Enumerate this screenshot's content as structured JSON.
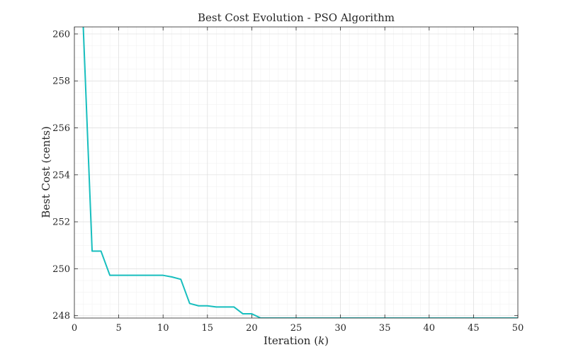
{
  "chart_data": {
    "type": "line",
    "title": "Best Cost Evolution - PSO Algorithm",
    "xlabel_prefix": "Iteration (",
    "xlabel_var": "k",
    "xlabel_suffix": ")",
    "ylabel": "Best Cost (cents)",
    "xlim": [
      0,
      50
    ],
    "ylim": [
      247.9,
      260.3
    ],
    "xticks": [
      0,
      5,
      10,
      15,
      20,
      25,
      30,
      35,
      40,
      45,
      50
    ],
    "yticks": [
      248,
      250,
      252,
      254,
      256,
      258,
      260
    ],
    "grid": true,
    "minor_grid": true,
    "series": [
      {
        "name": "Best Cost",
        "color": "#17BEBE",
        "x": [
          1,
          2,
          3,
          4,
          5,
          6,
          7,
          8,
          9,
          10,
          11,
          12,
          13,
          14,
          15,
          16,
          17,
          18,
          19,
          20,
          21,
          22,
          23,
          24,
          25,
          26,
          27,
          28,
          29,
          30,
          31,
          32,
          33,
          34,
          35,
          36,
          37,
          38,
          39,
          40,
          41,
          42,
          43,
          44,
          45,
          46,
          47,
          48,
          49,
          50
        ],
        "values": [
          260.3,
          250.75,
          250.75,
          249.72,
          249.72,
          249.72,
          249.72,
          249.72,
          249.72,
          249.72,
          249.65,
          249.55,
          248.52,
          248.42,
          248.42,
          248.37,
          248.37,
          248.37,
          248.08,
          248.08,
          247.9,
          247.9,
          247.9,
          247.9,
          247.9,
          247.9,
          247.9,
          247.9,
          247.9,
          247.9,
          247.9,
          247.9,
          247.9,
          247.9,
          247.9,
          247.9,
          247.9,
          247.9,
          247.9,
          247.9,
          247.9,
          247.9,
          247.9,
          247.9,
          247.9,
          247.9,
          247.9,
          247.9,
          247.9,
          247.9
        ]
      }
    ]
  }
}
